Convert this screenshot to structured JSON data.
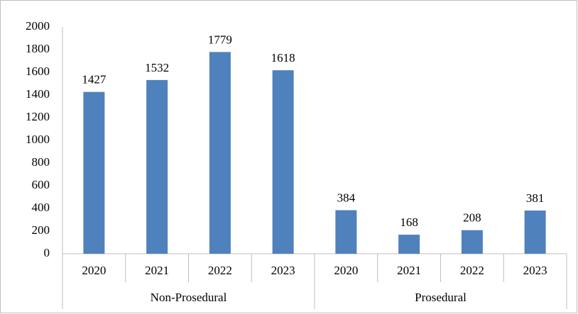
{
  "chart_data": {
    "type": "bar",
    "groups": [
      {
        "name": "Non-Prosedural",
        "categories": [
          "2020",
          "2021",
          "2022",
          "2023"
        ],
        "values": [
          1427,
          1532,
          1779,
          1618
        ]
      },
      {
        "name": "Prosedural",
        "categories": [
          "2020",
          "2021",
          "2022",
          "2023"
        ],
        "values": [
          384,
          168,
          208,
          381
        ]
      }
    ],
    "color": "#4f81bd",
    "ylim": [
      0,
      2000
    ],
    "yticks": [
      0,
      200,
      400,
      600,
      800,
      1000,
      1200,
      1400,
      1600,
      1800,
      2000
    ],
    "grid": false
  }
}
